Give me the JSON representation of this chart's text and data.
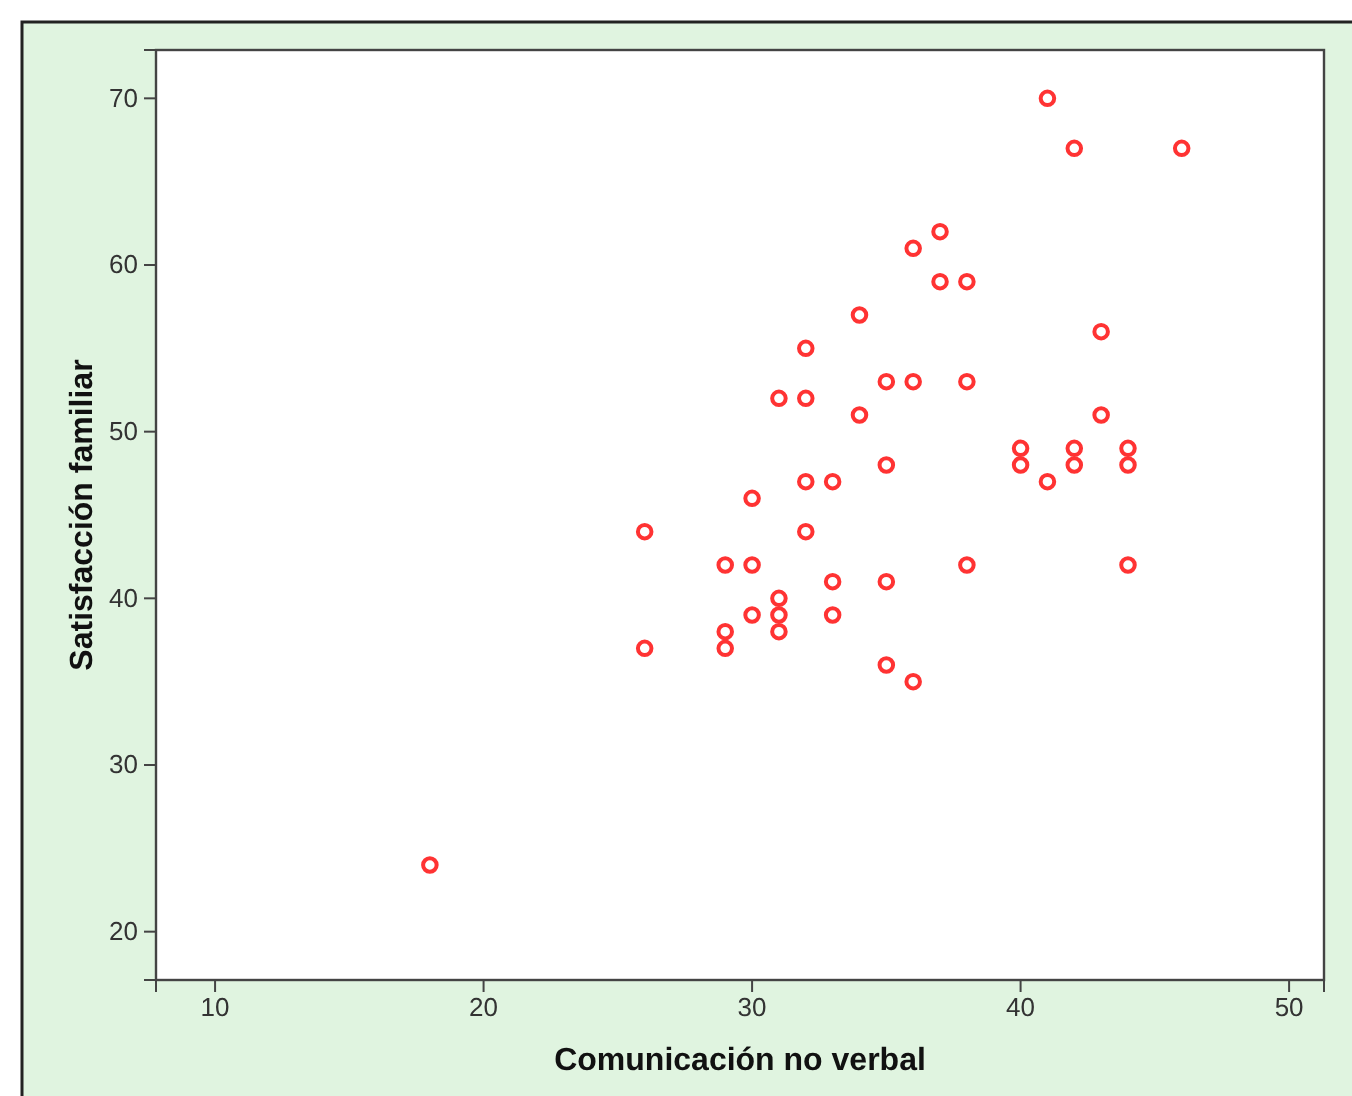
{
  "chart_data": {
    "type": "scatter",
    "xlabel": "Comunicación no verbal",
    "ylabel": "Satisfacción familiar",
    "xlim": [
      7.8,
      51.3
    ],
    "ylim": [
      17.1,
      72.9
    ],
    "xticks": [
      10,
      20,
      30,
      40,
      50
    ],
    "yticks": [
      20,
      30,
      40,
      50,
      60,
      70
    ],
    "marker": "circle",
    "series": [
      {
        "color": "#ff3333",
        "x": [
          41,
          42,
          46,
          37,
          36,
          37,
          38,
          34,
          43,
          32,
          35,
          36,
          38,
          31,
          32,
          34,
          43,
          40,
          42,
          44,
          40,
          42,
          44,
          35,
          41,
          32,
          33,
          30,
          26,
          32,
          29,
          30,
          38,
          44,
          33,
          35,
          31,
          30,
          31,
          33,
          29,
          31,
          26,
          29,
          35,
          36,
          18
        ],
        "values": [
          70,
          67,
          67,
          62,
          61,
          59,
          59,
          57,
          56,
          55,
          53,
          53,
          53,
          52,
          52,
          51,
          51,
          49,
          49,
          49,
          48,
          48,
          48,
          48,
          47,
          47,
          47,
          46,
          44,
          44,
          42,
          42,
          42,
          42,
          41,
          41,
          40,
          39,
          39,
          39,
          38,
          38,
          37,
          37,
          36,
          35,
          24
        ]
      }
    ]
  }
}
